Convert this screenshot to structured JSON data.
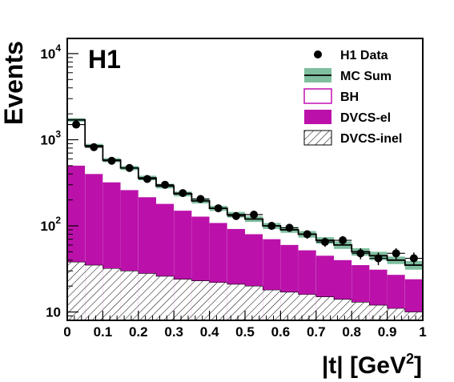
{
  "chart_data": {
    "type": "histogram",
    "label": "H1",
    "xlabel": "|t| [GeV²]",
    "xlabel_parts": {
      "base": "|t| [GeV",
      "sup": "2",
      "close": "]"
    },
    "ylabel": "Events",
    "xlim": [
      0,
      1
    ],
    "ylim": [
      8,
      15000
    ],
    "y_scale": "log",
    "x_ticks": [
      "0",
      "0.1",
      "0.2",
      "0.3",
      "0.4",
      "0.5",
      "0.6",
      "0.7",
      "0.8",
      "0.9",
      "1"
    ],
    "y_ticks": [
      {
        "value": 10,
        "base": "10",
        "sup": ""
      },
      {
        "value": 100,
        "base": "10",
        "sup": "2"
      },
      {
        "value": 1000,
        "base": "10",
        "sup": "3"
      },
      {
        "value": 10000,
        "base": "10",
        "sup": "4"
      }
    ],
    "bin_edges": [
      0,
      0.05,
      0.1,
      0.15,
      0.2,
      0.25,
      0.3,
      0.35,
      0.4,
      0.45,
      0.5,
      0.55,
      0.6,
      0.65,
      0.7,
      0.75,
      0.8,
      0.85,
      0.9,
      0.95,
      1.0
    ],
    "legend": [
      {
        "key": "data",
        "label": "H1 Data"
      },
      {
        "key": "mcsum",
        "label": "MC Sum"
      },
      {
        "key": "bh",
        "label": "BH"
      },
      {
        "key": "dvcs_el",
        "label": "DVCS-el"
      },
      {
        "key": "dvcs_inel",
        "label": "DVCS-inel"
      }
    ],
    "series": [
      {
        "name": "H1 Data",
        "key": "data",
        "x": [
          0.025,
          0.075,
          0.125,
          0.175,
          0.225,
          0.275,
          0.325,
          0.375,
          0.425,
          0.475,
          0.525,
          0.575,
          0.625,
          0.675,
          0.725,
          0.775,
          0.825,
          0.875,
          0.925,
          0.975
        ],
        "values": [
          1500,
          820,
          570,
          470,
          350,
          300,
          240,
          205,
          160,
          130,
          135,
          100,
          95,
          80,
          65,
          68,
          48,
          42,
          48,
          42
        ],
        "errors": [
          40,
          30,
          25,
          22,
          19,
          18,
          16,
          15,
          13,
          12,
          12,
          10,
          10,
          9,
          8,
          8,
          7,
          7,
          7,
          7
        ]
      },
      {
        "name": "MC Sum",
        "key": "mcsum",
        "values": [
          1700,
          850,
          580,
          470,
          360,
          290,
          235,
          195,
          160,
          135,
          120,
          100,
          90,
          80,
          68,
          60,
          50,
          45,
          40,
          35
        ],
        "band": [
          80,
          45,
          32,
          26,
          22,
          18,
          15,
          13,
          11,
          10,
          9,
          8,
          7,
          7,
          6,
          6,
          5,
          5,
          4,
          4
        ]
      },
      {
        "name": "BH",
        "key": "bh",
        "values": [
          1700,
          850,
          580,
          470,
          360,
          290,
          235,
          195,
          160,
          135,
          120,
          100,
          90,
          80,
          68,
          60,
          50,
          45,
          40,
          35
        ]
      },
      {
        "name": "DVCS-el",
        "key": "dvcs_el",
        "values": [
          500,
          400,
          320,
          260,
          215,
          180,
          150,
          128,
          108,
          92,
          80,
          70,
          60,
          52,
          45,
          40,
          35,
          31,
          27,
          24
        ]
      },
      {
        "name": "DVCS-inel",
        "key": "dvcs_inel",
        "values": [
          38,
          35,
          32,
          30,
          28,
          26,
          24,
          23,
          22,
          21,
          20,
          18,
          17,
          16,
          15,
          14,
          13,
          12,
          11,
          10
        ]
      }
    ],
    "colors": {
      "mc_band": "#7fbf9f",
      "mc_line": "#000000",
      "bh_outline": "#c010b0",
      "dvcs_el": "#bb11aa",
      "hatch": "#000000",
      "data": "#000000"
    }
  }
}
